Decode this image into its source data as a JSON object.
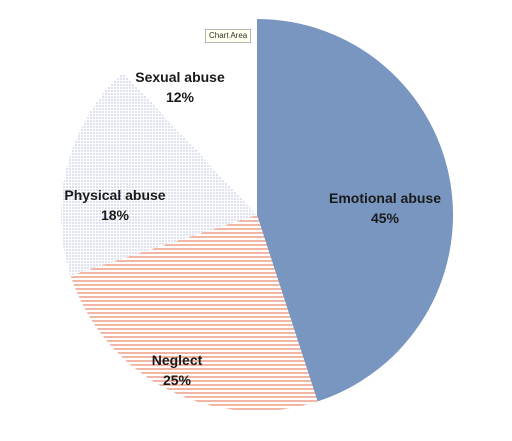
{
  "tooltip": "Chart Area",
  "chart_data": {
    "type": "pie",
    "slices": [
      {
        "name": "Emotional abuse",
        "value": 45,
        "label": "45%",
        "color": "#7896c0",
        "pattern": "solid"
      },
      {
        "name": "Neglect",
        "value": 25,
        "label": "25%",
        "color": "#e8866a",
        "pattern": "horizontal-lines"
      },
      {
        "name": "Physical abuse",
        "value": 18,
        "label": "18%",
        "color": "#9aa9cf",
        "pattern": "dots"
      },
      {
        "name": "Sexual abuse",
        "value": 12,
        "label": "12%",
        "color": "#ffffff",
        "pattern": "none"
      }
    ],
    "start_angle_deg": 0,
    "direction": "clockwise",
    "legend": "none",
    "labels_on_slices": true
  }
}
